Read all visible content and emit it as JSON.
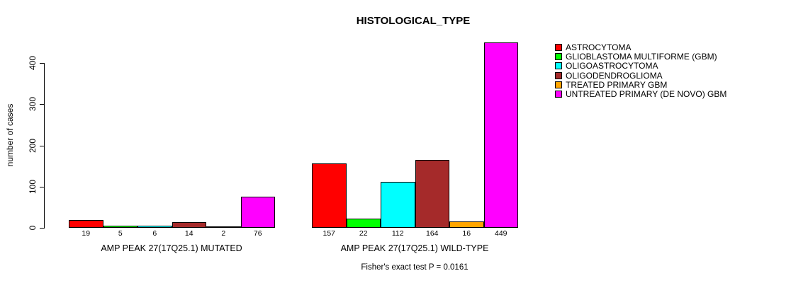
{
  "chart_data": {
    "type": "bar",
    "title": "HISTOLOGICAL_TYPE",
    "ylabel": "number of cases",
    "xlabel": "",
    "ylim": [
      0,
      449
    ],
    "yticks": [
      0,
      100,
      200,
      300,
      400
    ],
    "grid": false,
    "legend_position": "right",
    "bar_border_color": "#000000",
    "groups": [
      {
        "label": "AMP PEAK 27(17Q25.1) MUTATED",
        "values": [
          19,
          5,
          6,
          14,
          2,
          76
        ]
      },
      {
        "label": "AMP PEAK 27(17Q25.1) WILD-TYPE",
        "values": [
          157,
          22,
          112,
          164,
          16,
          449
        ]
      }
    ],
    "series": [
      {
        "name": "ASTROCYTOMA",
        "color": "#FF0000",
        "values": [
          19,
          157
        ]
      },
      {
        "name": "GLIOBLASTOMA MULTIFORME (GBM)",
        "color": "#00FF00",
        "values": [
          5,
          22
        ]
      },
      {
        "name": "OLIGOASTROCYTOMA",
        "color": "#00FFFF",
        "values": [
          6,
          112
        ]
      },
      {
        "name": "OLIGODENDROGLIOMA",
        "color": "#A52A2A",
        "values": [
          14,
          164
        ]
      },
      {
        "name": "TREATED PRIMARY GBM",
        "color": "#FFA500",
        "values": [
          2,
          16
        ]
      },
      {
        "name": "UNTREATED PRIMARY (DE NOVO) GBM",
        "color": "#FF00FF",
        "values": [
          76,
          449
        ]
      }
    ],
    "annotation": "Fisher's exact test P = 0.0161"
  }
}
